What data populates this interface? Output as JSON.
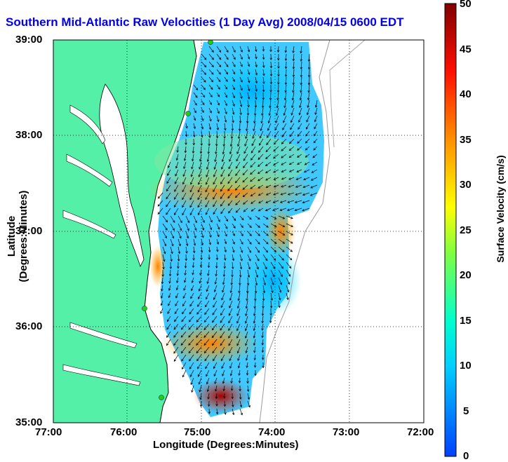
{
  "title": "Southern Mid-Atlantic Raw Velocities (1 Day Avg) 2008/04/15 0600 EDT",
  "x_axis": {
    "label": "Longitude (Degrees:Minutes)",
    "ticks": [
      "77:00",
      "76:00",
      "75:00",
      "74:00",
      "73:00",
      "72:00"
    ]
  },
  "y_axis": {
    "label": "Latitude (Degrees:Minutes)",
    "ticks": [
      "39:00",
      "38:00",
      "37:00",
      "36:00",
      "35:00"
    ]
  },
  "colorbar": {
    "label": "Surface Velocity (cm/s)",
    "ticks": [
      "50",
      "45",
      "40",
      "35",
      "30",
      "25",
      "20",
      "15",
      "10",
      "5",
      "0"
    ],
    "colors": [
      "#0000ff",
      "#00ffff",
      "#00ff66",
      "#ffff00",
      "#ff8800",
      "#ff0000",
      "#800000"
    ]
  },
  "colors": {
    "land": "#55f0a8",
    "water": "#ffffff",
    "coastline": "#000000",
    "bathymetry": "#999999",
    "station": "#22cc22",
    "title": "#0000ee"
  }
}
